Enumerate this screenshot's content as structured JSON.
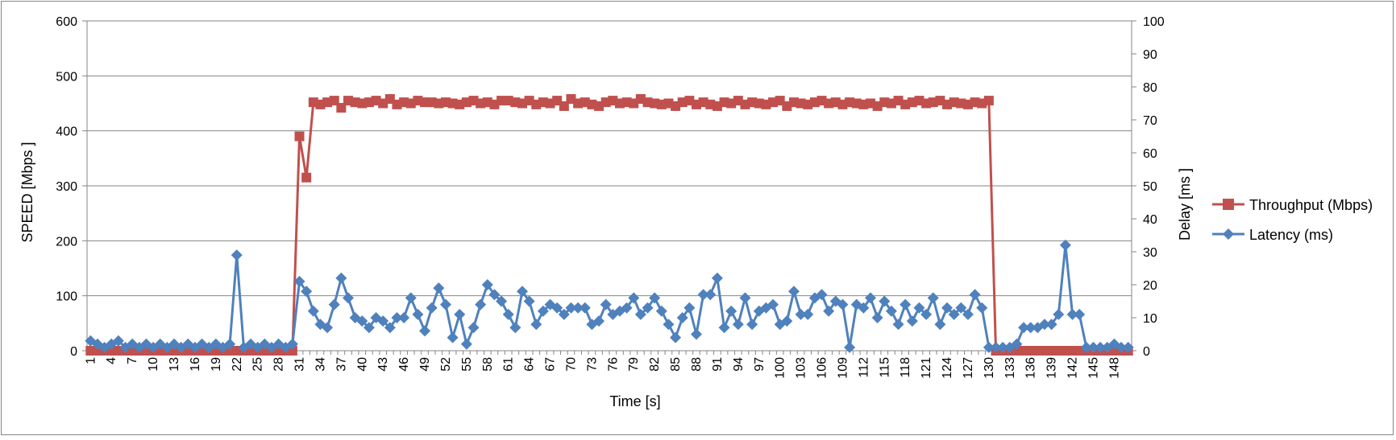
{
  "chart_data": {
    "type": "line",
    "xlabel": "Time [s]",
    "ylabel_left": "SPEED [Mbps ]",
    "ylabel_right": "Delay  [ms ]",
    "ylim_left": [
      0,
      600
    ],
    "ylim_right": [
      0,
      100
    ],
    "yticks_left": [
      "0",
      "100",
      "200",
      "300",
      "400",
      "500",
      "600"
    ],
    "yticks_right": [
      "0",
      "10",
      "20",
      "30",
      "40",
      "50",
      "60",
      "70",
      "80",
      "90",
      "100"
    ],
    "x_start": 1,
    "x_end": 150,
    "x_tick_step": 3,
    "grid": true,
    "legend_position": "right",
    "series": [
      {
        "name": "Throughput (Mbps)",
        "axis": "left",
        "color": "#C0504D",
        "marker": "square",
        "values": [
          0,
          0,
          0,
          0,
          0,
          0,
          0,
          0,
          0,
          0,
          0,
          0,
          0,
          0,
          0,
          0,
          0,
          0,
          0,
          0,
          0,
          0,
          0,
          0,
          0,
          0,
          0,
          0,
          0,
          0,
          390,
          315,
          452,
          448,
          452,
          455,
          442,
          455,
          452,
          450,
          452,
          455,
          450,
          458,
          448,
          452,
          450,
          455,
          452,
          452,
          450,
          452,
          450,
          448,
          452,
          455,
          450,
          452,
          448,
          455,
          455,
          452,
          450,
          455,
          448,
          452,
          450,
          455,
          445,
          458,
          450,
          452,
          448,
          445,
          452,
          455,
          450,
          452,
          450,
          458,
          452,
          450,
          448,
          450,
          445,
          452,
          455,
          448,
          452,
          448,
          445,
          452,
          450,
          455,
          448,
          452,
          450,
          448,
          452,
          455,
          445,
          452,
          450,
          448,
          452,
          455,
          450,
          452,
          448,
          452,
          450,
          448,
          450,
          445,
          452,
          450,
          455,
          448,
          452,
          455,
          450,
          452,
          455,
          448,
          452,
          450,
          448,
          452,
          450,
          455,
          0,
          0,
          0,
          0,
          0,
          0,
          0,
          0,
          0,
          0,
          0,
          0,
          0,
          0,
          0,
          0,
          0,
          0,
          0,
          0
        ]
      },
      {
        "name": "Latency (ms)",
        "axis": "right",
        "color": "#4F81BD",
        "marker": "diamond",
        "values": [
          3,
          2,
          1,
          2,
          3,
          1,
          2,
          1,
          2,
          1,
          2,
          1,
          2,
          1,
          2,
          1,
          2,
          1,
          2,
          1,
          2,
          29,
          1,
          2,
          1,
          2,
          1,
          2,
          1,
          2,
          21,
          18,
          12,
          8,
          7,
          14,
          22,
          16,
          10,
          9,
          7,
          10,
          9,
          7,
          10,
          10,
          16,
          11,
          6,
          13,
          19,
          14,
          4,
          11,
          2,
          7,
          14,
          20,
          17,
          15,
          11,
          7,
          18,
          15,
          8,
          12,
          14,
          13,
          11,
          13,
          13,
          13,
          8,
          9,
          14,
          11,
          12,
          13,
          16,
          11,
          13,
          16,
          12,
          8,
          4,
          10,
          13,
          5,
          17,
          17,
          22,
          7,
          12,
          8,
          16,
          8,
          12,
          13,
          14,
          8,
          9,
          18,
          11,
          11,
          16,
          17,
          12,
          15,
          14,
          1,
          14,
          13,
          16,
          10,
          15,
          12,
          8,
          14,
          9,
          13,
          11,
          16,
          8,
          13,
          11,
          13,
          11,
          17,
          13,
          1,
          1,
          1,
          1,
          2,
          7,
          7,
          7,
          8,
          8,
          11,
          32,
          11,
          11,
          1,
          1,
          1,
          1,
          2,
          1,
          1
        ]
      }
    ]
  }
}
